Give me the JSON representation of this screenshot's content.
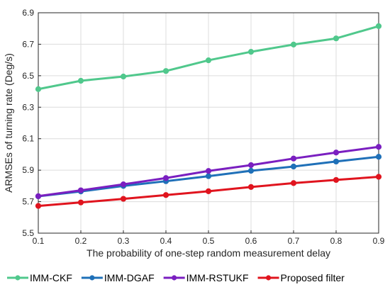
{
  "chart_data": {
    "type": "line",
    "title": "",
    "xlabel": "The probability of one-step random measurement delay",
    "ylabel": "ARMSEs of turning rate (Deg/s)",
    "xlim": [
      0.1,
      0.9
    ],
    "ylim": [
      5.5,
      6.9
    ],
    "x": [
      0.1,
      0.2,
      0.3,
      0.4,
      0.5,
      0.6,
      0.7,
      0.8,
      0.9
    ],
    "x_ticks": [
      "0.1",
      "0.2",
      "0.3",
      "0.4",
      "0.5",
      "0.6",
      "0.7",
      "0.8",
      "0.9"
    ],
    "y_ticks": [
      "5.5",
      "5.7",
      "5.9",
      "6.1",
      "6.3",
      "6.5",
      "6.7",
      "6.9"
    ],
    "y_tick_values": [
      5.5,
      5.7,
      5.9,
      6.1,
      6.3,
      6.5,
      6.7,
      6.9
    ],
    "grid": true,
    "legend_placement": "bottom",
    "series": [
      {
        "name": "IMM-CKF",
        "color": "#50c88c",
        "values": [
          6.415,
          6.468,
          6.495,
          6.53,
          6.598,
          6.652,
          6.698,
          6.737,
          6.815
        ]
      },
      {
        "name": "IMM-DGAF",
        "color": "#1f70b8",
        "values": [
          5.734,
          5.765,
          5.8,
          5.83,
          5.862,
          5.896,
          5.923,
          5.955,
          5.985
        ]
      },
      {
        "name": "IMM-RSTUKF",
        "color": "#7a1fc0",
        "values": [
          5.735,
          5.772,
          5.81,
          5.85,
          5.895,
          5.932,
          5.974,
          6.012,
          6.048
        ]
      },
      {
        "name": "Proposed filter",
        "color": "#e0141e",
        "values": [
          5.673,
          5.695,
          5.718,
          5.742,
          5.766,
          5.793,
          5.818,
          5.838,
          5.858
        ]
      }
    ]
  }
}
